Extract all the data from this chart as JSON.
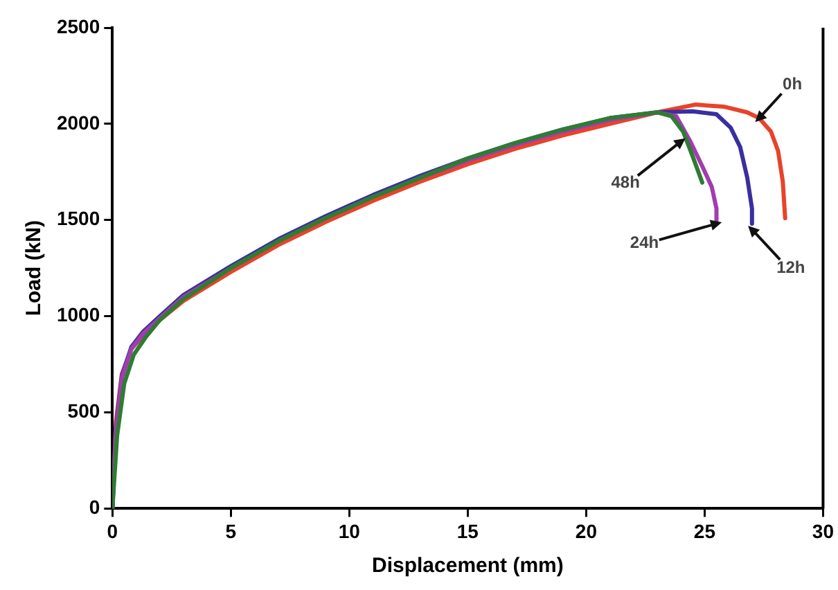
{
  "chart_data": {
    "type": "line",
    "xlabel": "Displacement (mm)",
    "ylabel": "Load (kN)",
    "xlim": [
      0,
      30
    ],
    "ylim": [
      0,
      2500
    ],
    "xticks": [
      0,
      5,
      10,
      15,
      20,
      25,
      30
    ],
    "yticks": [
      0,
      500,
      1000,
      1500,
      2000,
      2500
    ],
    "grid": false,
    "legend": false,
    "marker": "none",
    "line_style": "solid",
    "series": [
      {
        "color": "#e8432a",
        "x": [
          0,
          0.15,
          0.4,
          0.8,
          1.3,
          2,
          3,
          5,
          7,
          9,
          11,
          13,
          15,
          17,
          19,
          21,
          23,
          24.6,
          25.8,
          26.8,
          27.3,
          27.8,
          28.1,
          28.3,
          28.4
        ],
        "values": [
          0,
          450,
          700,
          830,
          900,
          980,
          1080,
          1230,
          1370,
          1490,
          1600,
          1700,
          1790,
          1870,
          1940,
          2000,
          2060,
          2100,
          2090,
          2060,
          2030,
          1960,
          1860,
          1700,
          1510
        ]
      },
      {
        "color": "#3a2fa0",
        "x": [
          0,
          0.15,
          0.4,
          0.8,
          1.3,
          2,
          3,
          5,
          7,
          9,
          11,
          13,
          15,
          17,
          19,
          21,
          23,
          24.5,
          25.5,
          26.1,
          26.5,
          26.8,
          27,
          27
        ],
        "values": [
          0,
          420,
          690,
          840,
          920,
          1000,
          1110,
          1260,
          1400,
          1520,
          1630,
          1730,
          1820,
          1900,
          1970,
          2030,
          2060,
          2065,
          2050,
          1980,
          1880,
          1720,
          1560,
          1481
        ]
      },
      {
        "color": "#a23cb0",
        "x": [
          0,
          0.15,
          0.4,
          0.8,
          1.3,
          2,
          3,
          5,
          7,
          9,
          11,
          13,
          15,
          17,
          19,
          21,
          23,
          23.8,
          24.4,
          24.9,
          25.3,
          25.5,
          25.5
        ],
        "values": [
          0,
          400,
          680,
          830,
          910,
          990,
          1100,
          1250,
          1390,
          1510,
          1620,
          1720,
          1810,
          1890,
          1960,
          2020,
          2060,
          2040,
          1908,
          1780,
          1673,
          1560,
          1481
        ]
      },
      {
        "color": "#2e7d32",
        "x": [
          0,
          0.2,
          0.5,
          0.9,
          1.4,
          2,
          3,
          5,
          7,
          9,
          11,
          13,
          15,
          17,
          19,
          21,
          23,
          23.6,
          24.1,
          24.5,
          24.9
        ],
        "values": [
          0,
          380,
          650,
          800,
          890,
          980,
          1090,
          1250,
          1390,
          1510,
          1620,
          1720,
          1820,
          1900,
          1970,
          2030,
          2060,
          2040,
          1958,
          1830,
          1695
        ]
      }
    ],
    "annotations": [
      {
        "text": "0h",
        "x": 27.3,
        "y": 2030
      },
      {
        "text": "12h",
        "x": 27,
        "y": 1450
      },
      {
        "text": "24h",
        "x": 25.5,
        "y": 1481
      },
      {
        "text": "48h",
        "x": 24,
        "y": 1908
      }
    ]
  }
}
